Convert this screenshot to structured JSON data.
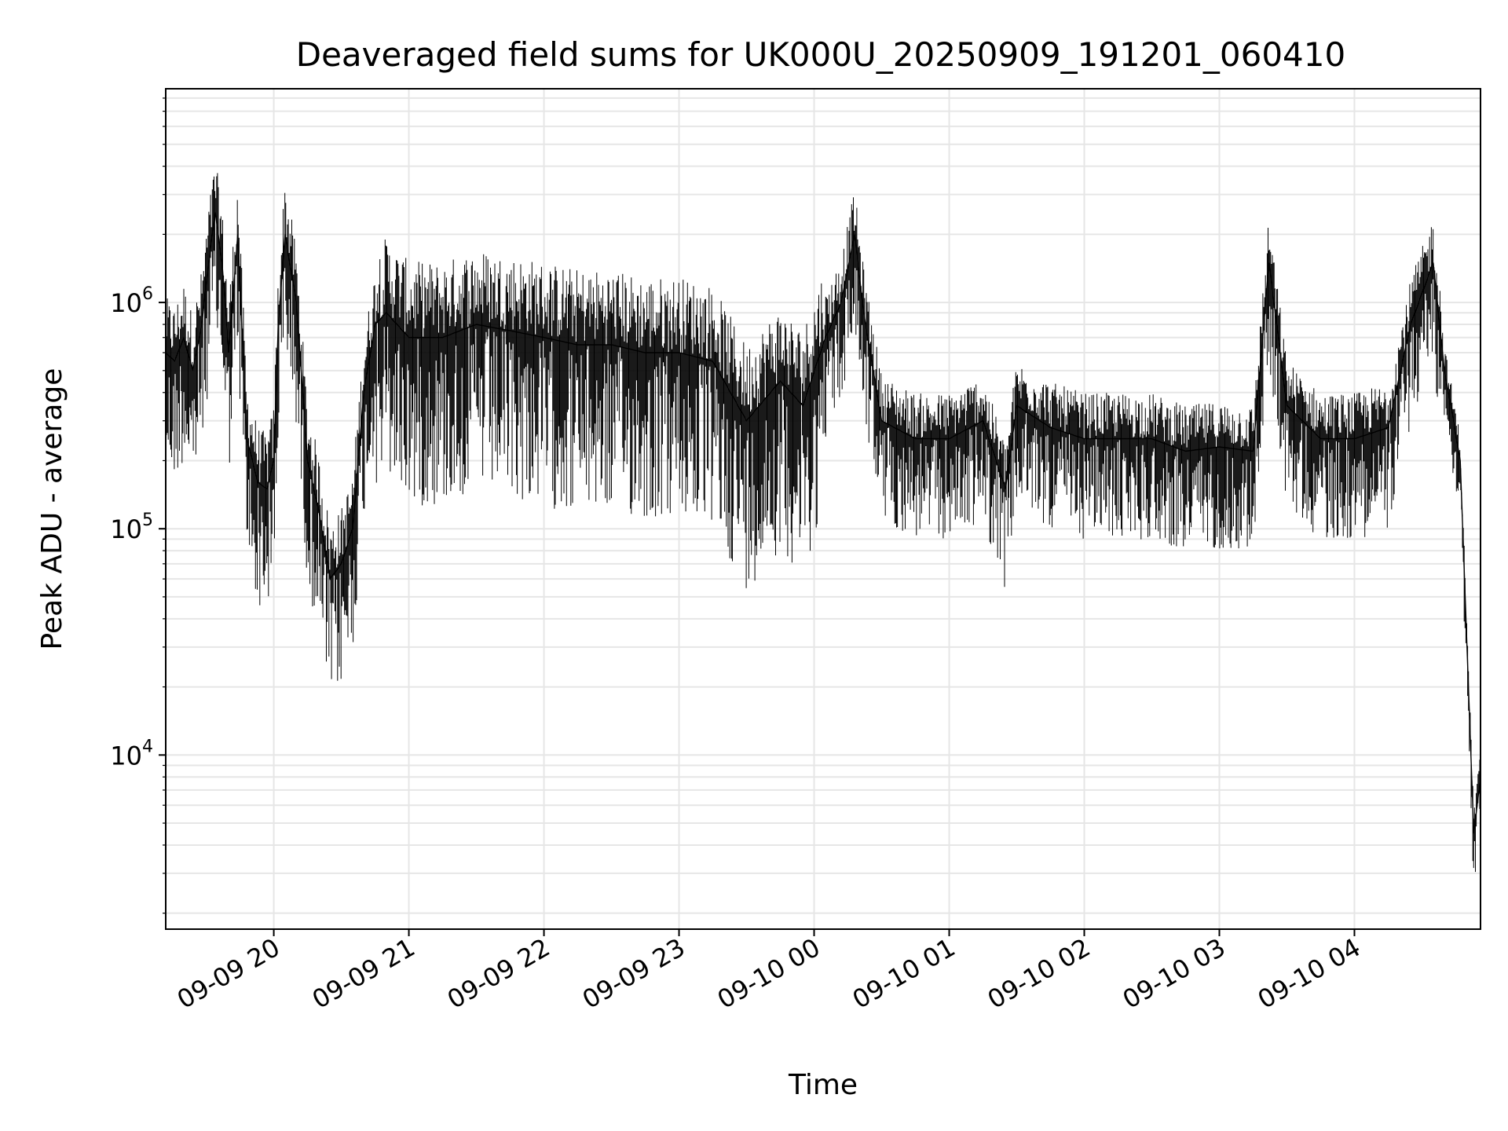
{
  "chart_data": {
    "type": "line",
    "title": "Deaveraged field sums for UK000U_20250909_191201_060410",
    "xlabel": "Time",
    "ylabel": "Peak ADU - average",
    "yscale": "log",
    "xlim": [
      "2025-09-09 19:12",
      "2025-09-10 04:56"
    ],
    "ylim": [
      1700,
      8800000
    ],
    "grid": {
      "major": true,
      "minor_y": true
    },
    "legend": "none",
    "line_color": "#000000",
    "x_ticks": [
      {
        "label": "09-09 20",
        "time": "2025-09-09 20:00"
      },
      {
        "label": "09-09 21",
        "time": "2025-09-09 21:00"
      },
      {
        "label": "09-09 22",
        "time": "2025-09-09 22:00"
      },
      {
        "label": "09-09 23",
        "time": "2025-09-09 23:00"
      },
      {
        "label": "09-10 00",
        "time": "2025-09-10 00:00"
      },
      {
        "label": "09-10 01",
        "time": "2025-09-10 01:00"
      },
      {
        "label": "09-10 02",
        "time": "2025-09-10 02:00"
      },
      {
        "label": "09-10 03",
        "time": "2025-09-10 03:00"
      },
      {
        "label": "09-10 04",
        "time": "2025-09-10 04:00"
      }
    ],
    "y_ticks": [
      {
        "base": "10",
        "exp": "4",
        "value": 10000
      },
      {
        "base": "10",
        "exp": "5",
        "value": 100000
      },
      {
        "base": "10",
        "exp": "6",
        "value": 1000000
      }
    ],
    "series": [
      {
        "x": [
          "2025-09-09 19:12",
          "2025-09-09 19:16",
          "2025-09-09 19:20",
          "2025-09-09 19:24",
          "2025-09-09 19:28",
          "2025-09-09 19:31",
          "2025-09-09 19:34",
          "2025-09-09 19:37",
          "2025-09-09 19:40",
          "2025-09-09 19:44",
          "2025-09-09 19:48",
          "2025-09-09 19:53",
          "2025-09-09 19:57",
          "2025-09-09 20:00",
          "2025-09-09 20:02",
          "2025-09-09 20:05",
          "2025-09-09 20:10",
          "2025-09-09 20:15",
          "2025-09-09 20:20",
          "2025-09-09 20:25",
          "2025-09-09 20:30",
          "2025-09-09 20:35",
          "2025-09-09 20:40",
          "2025-09-09 20:45",
          "2025-09-09 20:50",
          "2025-09-09 21:00",
          "2025-09-09 21:15",
          "2025-09-09 21:30",
          "2025-09-09 21:45",
          "2025-09-09 22:00",
          "2025-09-09 22:15",
          "2025-09-09 22:30",
          "2025-09-09 22:45",
          "2025-09-09 23:00",
          "2025-09-09 23:15",
          "2025-09-09 23:30",
          "2025-09-09 23:45",
          "2025-09-09 23:55",
          "2025-09-10 00:05",
          "2025-09-10 00:12",
          "2025-09-10 00:18",
          "2025-09-10 00:22",
          "2025-09-10 00:30",
          "2025-09-10 00:45",
          "2025-09-10 01:00",
          "2025-09-10 01:15",
          "2025-09-10 01:25",
          "2025-09-10 01:30",
          "2025-09-10 01:45",
          "2025-09-10 02:00",
          "2025-09-10 02:15",
          "2025-09-10 02:30",
          "2025-09-10 02:45",
          "2025-09-10 03:00",
          "2025-09-10 03:15",
          "2025-09-10 03:22",
          "2025-09-10 03:30",
          "2025-09-10 03:45",
          "2025-09-10 04:00",
          "2025-09-10 04:15",
          "2025-09-10 04:25",
          "2025-09-10 04:35",
          "2025-09-10 04:40",
          "2025-09-10 04:44",
          "2025-09-10 04:47",
          "2025-09-10 04:50",
          "2025-09-10 04:53",
          "2025-09-10 04:56"
        ],
        "y": [
          600000,
          550000,
          700000,
          500000,
          800000,
          1500000,
          2500000,
          1500000,
          600000,
          2000000,
          250000,
          160000,
          150000,
          200000,
          800000,
          2000000,
          1000000,
          200000,
          120000,
          60000,
          70000,
          100000,
          400000,
          800000,
          900000,
          700000,
          700000,
          800000,
          750000,
          700000,
          650000,
          650000,
          600000,
          600000,
          550000,
          300000,
          450000,
          350000,
          700000,
          1000000,
          2000000,
          900000,
          300000,
          250000,
          250000,
          300000,
          150000,
          350000,
          280000,
          250000,
          250000,
          250000,
          220000,
          230000,
          220000,
          1500000,
          350000,
          250000,
          250000,
          280000,
          800000,
          1500000,
          500000,
          300000,
          200000,
          30000,
          4500,
          8000
        ]
      }
    ]
  }
}
